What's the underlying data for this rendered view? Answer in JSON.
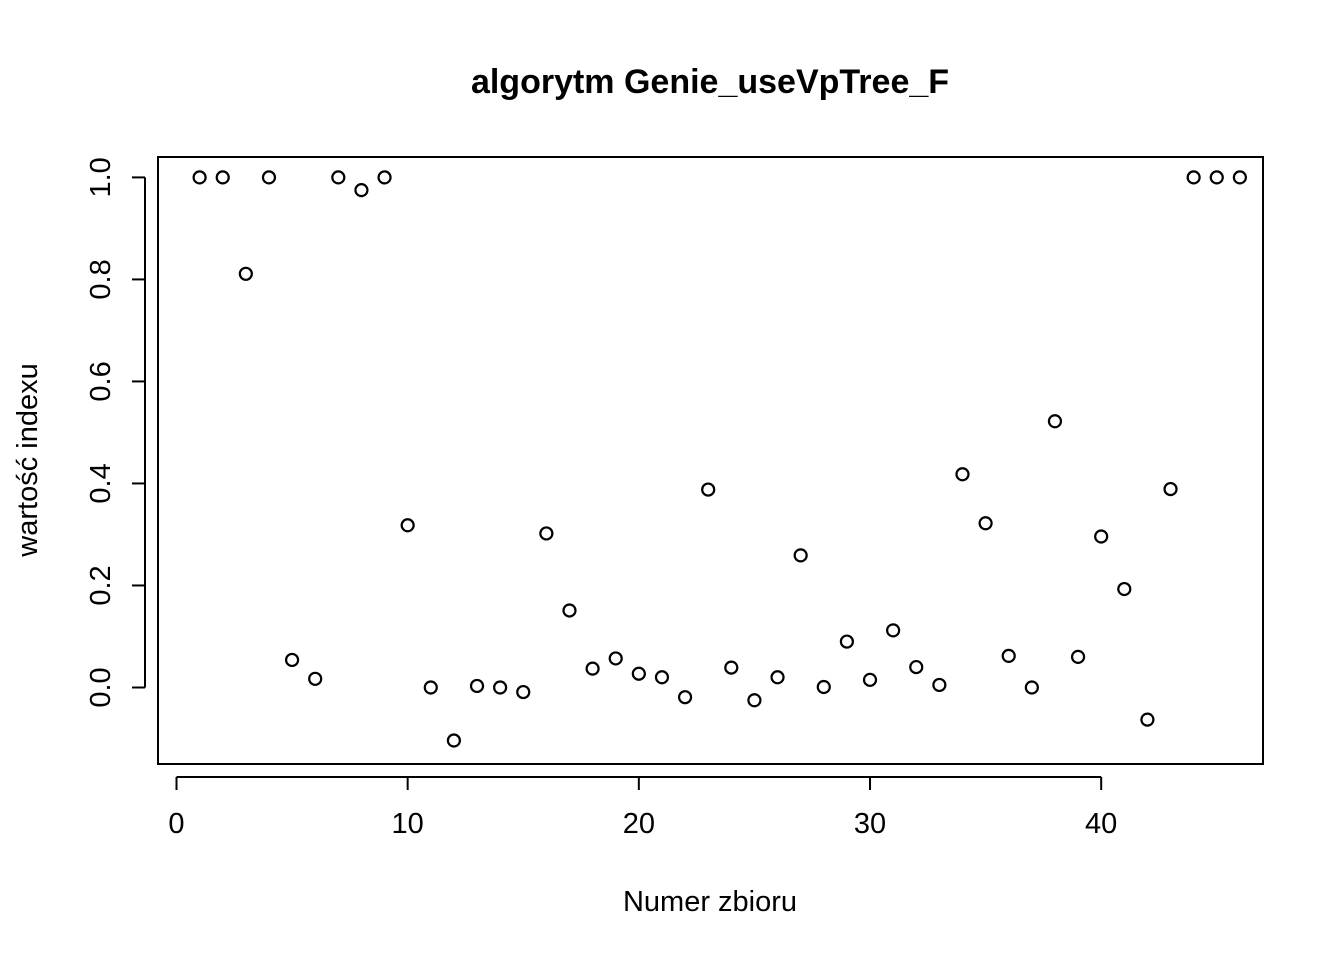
{
  "chart_data": {
    "type": "scatter",
    "title": "algorytm Genie_useVpTree_F",
    "xlabel": "Numer zbioru",
    "ylabel": "wartość indexu",
    "xlim": [
      -0.8,
      47.0
    ],
    "ylim": [
      -0.15,
      1.04
    ],
    "xticks": [
      0,
      10,
      20,
      30,
      40
    ],
    "yticks": [
      0.0,
      0.2,
      0.4,
      0.6,
      0.8,
      1.0
    ],
    "xtick_labels": [
      "0",
      "10",
      "20",
      "30",
      "40"
    ],
    "ytick_labels": [
      "0.0",
      "0.2",
      "0.4",
      "0.6",
      "0.8",
      "1.0"
    ],
    "grid": false,
    "legend": false,
    "marker": "open-circle",
    "x": [
      1,
      2,
      3,
      4,
      5,
      6,
      7,
      8,
      9,
      10,
      11,
      12,
      13,
      14,
      15,
      16,
      17,
      18,
      19,
      20,
      21,
      22,
      23,
      24,
      25,
      26,
      27,
      28,
      29,
      30,
      31,
      32,
      33,
      34,
      35,
      36,
      37,
      38,
      39,
      40,
      41,
      42,
      43,
      44,
      45,
      46
    ],
    "y": [
      1.0,
      1.0,
      0.811,
      1.0,
      0.054,
      0.017,
      1.0,
      0.975,
      1.0,
      0.318,
      0.0,
      -0.104,
      0.003,
      0.0,
      -0.009,
      0.302,
      0.151,
      0.037,
      0.057,
      0.027,
      0.02,
      -0.019,
      0.388,
      0.039,
      -0.025,
      0.02,
      0.259,
      0.001,
      0.09,
      0.015,
      0.112,
      0.04,
      0.005,
      0.418,
      0.322,
      0.062,
      0.0,
      0.522,
      0.06,
      0.296,
      0.193,
      -0.063,
      0.389,
      1.0,
      1.0,
      1.0
    ]
  }
}
